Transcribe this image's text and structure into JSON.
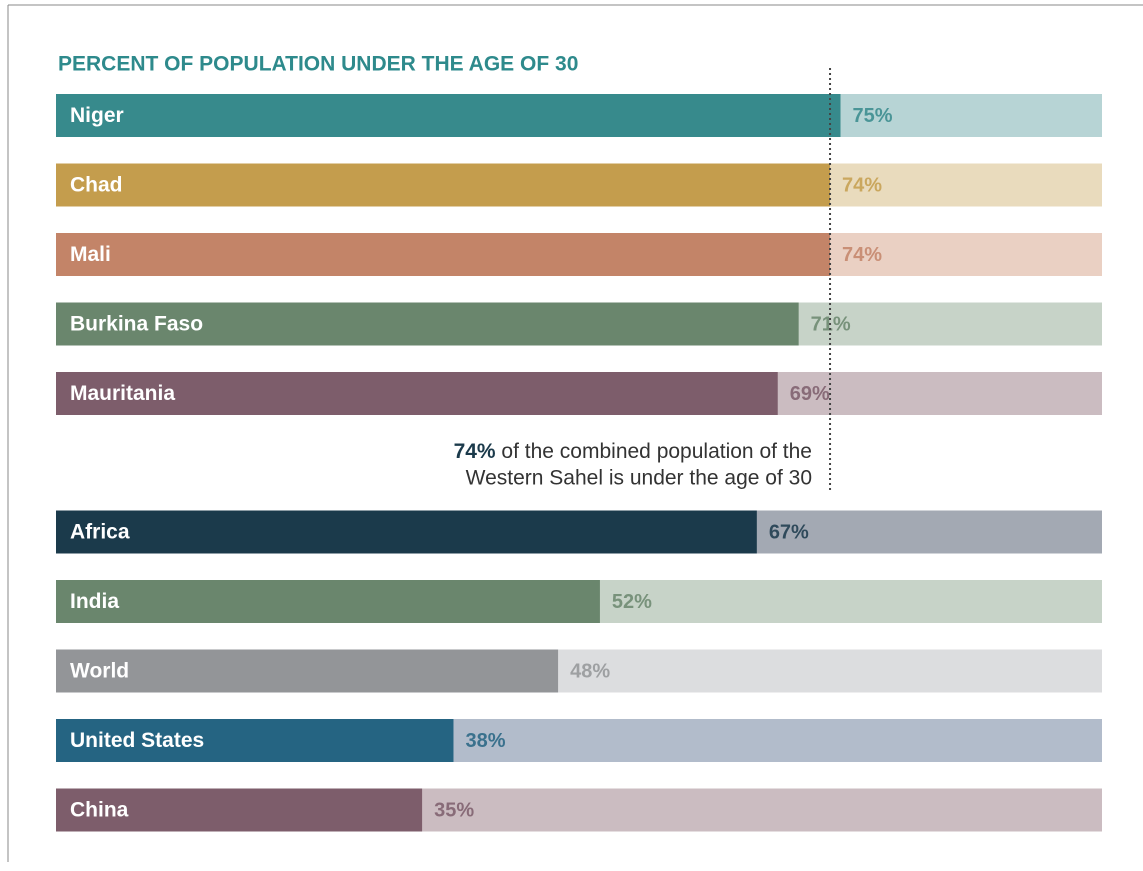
{
  "chart_data": {
    "type": "bar",
    "orientation": "horizontal",
    "title": "PERCENT OF POPULATION UNDER THE AGE OF 30",
    "categories": [
      "Niger",
      "Chad",
      "Mali",
      "Burkina Faso",
      "Mauritania",
      "Africa",
      "India",
      "World",
      "United States",
      "China"
    ],
    "values": [
      75,
      74,
      74,
      71,
      69,
      67,
      52,
      48,
      38,
      35
    ],
    "value_labels": [
      "75%",
      "74%",
      "74%",
      "71%",
      "69%",
      "67%",
      "52%",
      "48%",
      "38%",
      "35%"
    ],
    "colors": [
      "#378a8c",
      "#c49d4d",
      "#c38468",
      "#6a866d",
      "#7d5d6b",
      "#1b3a4b",
      "#6a866d",
      "#939598",
      "#256482",
      "#7d5d6b"
    ],
    "track_colors": [
      "#b7d4d5",
      "#e9dbbd",
      "#ead0c3",
      "#c7d3c8",
      "#cbbcc1",
      "#a3a9b3",
      "#c7d3c8",
      "#dcdddf",
      "#b2bccb",
      "#cbbcc1"
    ],
    "xlim": [
      0,
      100
    ],
    "reference": {
      "value": 74,
      "label": "74%",
      "lines": [
        "of the combined population of the",
        "Western Sahel is under the age of 30"
      ]
    }
  }
}
